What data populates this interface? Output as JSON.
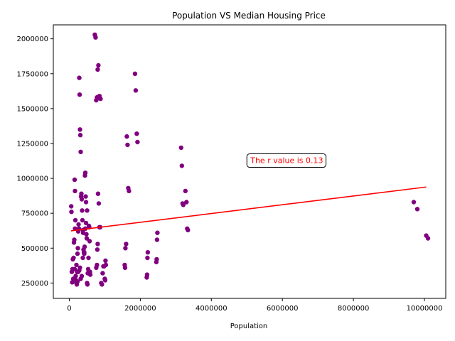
{
  "chart_data": {
    "type": "scatter",
    "title": "Population VS Median Housing Price",
    "xlabel": "Population",
    "ylabel": "",
    "xlim": [
      -450000,
      10600000
    ],
    "ylim": [
      140000,
      2100000
    ],
    "xticks": [
      0,
      2000000,
      4000000,
      6000000,
      8000000,
      10000000
    ],
    "yticks": [
      250000,
      500000,
      750000,
      1000000,
      1250000,
      1500000,
      1750000,
      2000000
    ],
    "xtick_labels": [
      "0",
      "2000000",
      "4000000",
      "6000000",
      "8000000",
      "10000000"
    ],
    "ytick_labels": [
      "250000",
      "500000",
      "750000",
      "1000000",
      "1250000",
      "1500000",
      "1750000",
      "2000000"
    ],
    "grid": false,
    "point_color": "#800080",
    "line_color": "#ff0000",
    "points": [
      [
        55000,
        800000
      ],
      [
        60000,
        760000
      ],
      [
        80000,
        255000
      ],
      [
        70000,
        330000
      ],
      [
        90000,
        350000
      ],
      [
        100000,
        420000
      ],
      [
        110000,
        280000
      ],
      [
        120000,
        430000
      ],
      [
        130000,
        540000
      ],
      [
        140000,
        560000
      ],
      [
        150000,
        990000
      ],
      [
        160000,
        910000
      ],
      [
        160000,
        640000
      ],
      [
        170000,
        700000
      ],
      [
        180000,
        300000
      ],
      [
        190000,
        270000
      ],
      [
        200000,
        250000
      ],
      [
        210000,
        240000
      ],
      [
        220000,
        330000
      ],
      [
        230000,
        460000
      ],
      [
        240000,
        500000
      ],
      [
        250000,
        620000
      ],
      [
        260000,
        670000
      ],
      [
        270000,
        640000
      ],
      [
        280000,
        1720000
      ],
      [
        290000,
        1600000
      ],
      [
        300000,
        1350000
      ],
      [
        310000,
        1310000
      ],
      [
        320000,
        1190000
      ],
      [
        330000,
        870000
      ],
      [
        340000,
        890000
      ],
      [
        350000,
        850000
      ],
      [
        360000,
        770000
      ],
      [
        370000,
        700000
      ],
      [
        380000,
        630000
      ],
      [
        390000,
        610000
      ],
      [
        400000,
        490000
      ],
      [
        410000,
        470000
      ],
      [
        420000,
        460000
      ],
      [
        430000,
        510000
      ],
      [
        440000,
        1020000
      ],
      [
        450000,
        1040000
      ],
      [
        460000,
        870000
      ],
      [
        470000,
        680000
      ],
      [
        480000,
        600000
      ],
      [
        490000,
        570000
      ],
      [
        500000,
        250000
      ],
      [
        510000,
        240000
      ],
      [
        520000,
        320000
      ],
      [
        530000,
        350000
      ],
      [
        540000,
        430000
      ],
      [
        550000,
        660000
      ],
      [
        560000,
        650000
      ],
      [
        570000,
        550000
      ],
      [
        580000,
        330000
      ],
      [
        590000,
        310000
      ],
      [
        150000,
        350000
      ],
      [
        200000,
        380000
      ],
      [
        250000,
        330000
      ],
      [
        300000,
        360000
      ],
      [
        350000,
        300000
      ],
      [
        230000,
        260000
      ],
      [
        280000,
        340000
      ],
      [
        320000,
        280000
      ],
      [
        450000,
        640000
      ],
      [
        470000,
        830000
      ],
      [
        500000,
        770000
      ],
      [
        420000,
        470000
      ],
      [
        380000,
        430000
      ],
      [
        720000,
        2030000
      ],
      [
        740000,
        2010000
      ],
      [
        760000,
        1560000
      ],
      [
        780000,
        1580000
      ],
      [
        800000,
        1780000
      ],
      [
        820000,
        1810000
      ],
      [
        850000,
        1590000
      ],
      [
        880000,
        1570000
      ],
      [
        760000,
        360000
      ],
      [
        780000,
        380000
      ],
      [
        790000,
        490000
      ],
      [
        800000,
        530000
      ],
      [
        810000,
        890000
      ],
      [
        830000,
        820000
      ],
      [
        850000,
        650000
      ],
      [
        870000,
        650000
      ],
      [
        900000,
        250000
      ],
      [
        920000,
        240000
      ],
      [
        940000,
        320000
      ],
      [
        960000,
        370000
      ],
      [
        980000,
        370000
      ],
      [
        1000000,
        280000
      ],
      [
        1010000,
        270000
      ],
      [
        1020000,
        410000
      ],
      [
        1030000,
        380000
      ],
      [
        1560000,
        380000
      ],
      [
        1570000,
        360000
      ],
      [
        1580000,
        500000
      ],
      [
        1600000,
        530000
      ],
      [
        1620000,
        1300000
      ],
      [
        1640000,
        1240000
      ],
      [
        1660000,
        930000
      ],
      [
        1680000,
        910000
      ],
      [
        1850000,
        1750000
      ],
      [
        1870000,
        1630000
      ],
      [
        1900000,
        1320000
      ],
      [
        1920000,
        1260000
      ],
      [
        2180000,
        290000
      ],
      [
        2190000,
        310000
      ],
      [
        2200000,
        430000
      ],
      [
        2210000,
        470000
      ],
      [
        2450000,
        400000
      ],
      [
        2460000,
        420000
      ],
      [
        2470000,
        560000
      ],
      [
        2480000,
        610000
      ],
      [
        3150000,
        1220000
      ],
      [
        3170000,
        1090000
      ],
      [
        3190000,
        820000
      ],
      [
        3210000,
        810000
      ],
      [
        3270000,
        910000
      ],
      [
        3300000,
        830000
      ],
      [
        3320000,
        640000
      ],
      [
        3340000,
        630000
      ],
      [
        9700000,
        830000
      ],
      [
        9800000,
        780000
      ],
      [
        10050000,
        590000
      ],
      [
        10100000,
        570000
      ]
    ],
    "regression": {
      "x_start": 50000,
      "x_end": 10050000,
      "y_start": 624000,
      "y_end": 938000
    },
    "annotation": {
      "text": "The r value is 0.13",
      "x": 5100000,
      "y": 1130000,
      "text_color": "#ff0000"
    }
  }
}
